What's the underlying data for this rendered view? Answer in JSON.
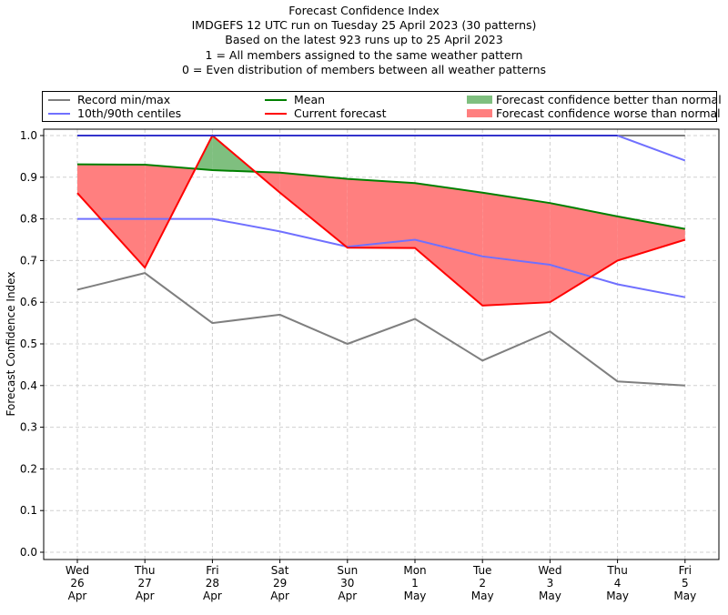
{
  "chart_data": {
    "type": "line",
    "title_lines": [
      "Forecast Confidence Index",
      "IMDGEFS 12 UTC run on Tuesday 25 April 2023 (30 patterns)",
      "Based on the latest 923 runs up to 25 April 2023",
      "1 = All members assigned to the same weather pattern",
      "0 = Even distribution of members between all weather patterns"
    ],
    "xlabel": "",
    "ylabel": "Forecast Confidence Index",
    "ylim": [
      0.0,
      1.0
    ],
    "yticks": [
      "0.0",
      "0.1",
      "0.2",
      "0.3",
      "0.4",
      "0.5",
      "0.6",
      "0.7",
      "0.8",
      "0.9",
      "1.0"
    ],
    "grid": true,
    "legend_position": "top (above plot)",
    "categories": [
      {
        "day": "Wed",
        "date": "26",
        "month": "Apr"
      },
      {
        "day": "Thu",
        "date": "27",
        "month": "Apr"
      },
      {
        "day": "Fri",
        "date": "28",
        "month": "Apr"
      },
      {
        "day": "Sat",
        "date": "29",
        "month": "Apr"
      },
      {
        "day": "Sun",
        "date": "30",
        "month": "Apr"
      },
      {
        "day": "Mon",
        "date": "1",
        "month": "May"
      },
      {
        "day": "Tue",
        "date": "2",
        "month": "May"
      },
      {
        "day": "Wed",
        "date": "3",
        "month": "May"
      },
      {
        "day": "Thu",
        "date": "4",
        "month": "May"
      },
      {
        "day": "Fri",
        "date": "5",
        "month": "May"
      }
    ],
    "series": [
      {
        "name": "Record min",
        "legend": "Record min/max",
        "color": "#7f7f7f",
        "values": [
          0.63,
          0.67,
          0.55,
          0.57,
          0.5,
          0.56,
          0.46,
          0.53,
          0.41,
          0.4
        ]
      },
      {
        "name": "Record max",
        "legend": "Record min/max",
        "color": "#7f7f7f",
        "values": [
          1.0,
          1.0,
          1.0,
          1.0,
          1.0,
          1.0,
          1.0,
          1.0,
          1.0,
          1.0
        ]
      },
      {
        "name": "10th centile",
        "legend": "10th/90th centiles",
        "color": "#7070ff",
        "values": [
          0.8,
          0.8,
          0.8,
          0.77,
          0.733,
          0.75,
          0.71,
          0.69,
          0.643,
          0.612
        ]
      },
      {
        "name": "90th centile",
        "legend": "10th/90th centiles",
        "color": "#7070ff",
        "values": [
          1.0,
          1.0,
          1.0,
          1.0,
          1.0,
          1.0,
          1.0,
          1.0,
          1.0,
          0.94
        ]
      },
      {
        "name": "Mean",
        "legend": "Mean",
        "color": "#008000",
        "values": [
          0.931,
          0.93,
          0.917,
          0.911,
          0.896,
          0.886,
          0.863,
          0.838,
          0.806,
          0.776
        ]
      },
      {
        "name": "Current forecast",
        "legend": "Current forecast",
        "color": "#ff0000",
        "values": [
          0.862,
          0.683,
          1.0,
          0.863,
          0.731,
          0.73,
          0.592,
          0.6,
          0.7,
          0.75
        ]
      }
    ],
    "fills": [
      {
        "name": "Forecast confidence better than normal",
        "color": "#7fbf7f",
        "rule": "current > mean"
      },
      {
        "name": "Forecast confidence worse than normal",
        "color": "#ff7f7f",
        "rule": "current < mean"
      }
    ]
  },
  "legend": {
    "record": "Record min/max",
    "centiles": "10th/90th centiles",
    "mean": "Mean",
    "current": "Current forecast",
    "better": "Forecast confidence better than normal",
    "worse": "Forecast confidence worse than normal"
  },
  "colors": {
    "record": "#7f7f7f",
    "centile": "#7070ff",
    "mean": "#008000",
    "current": "#ff0000",
    "better": "#7fbf7f",
    "worse": "#ff7f7f",
    "overlap_blue": "#3333cc"
  }
}
